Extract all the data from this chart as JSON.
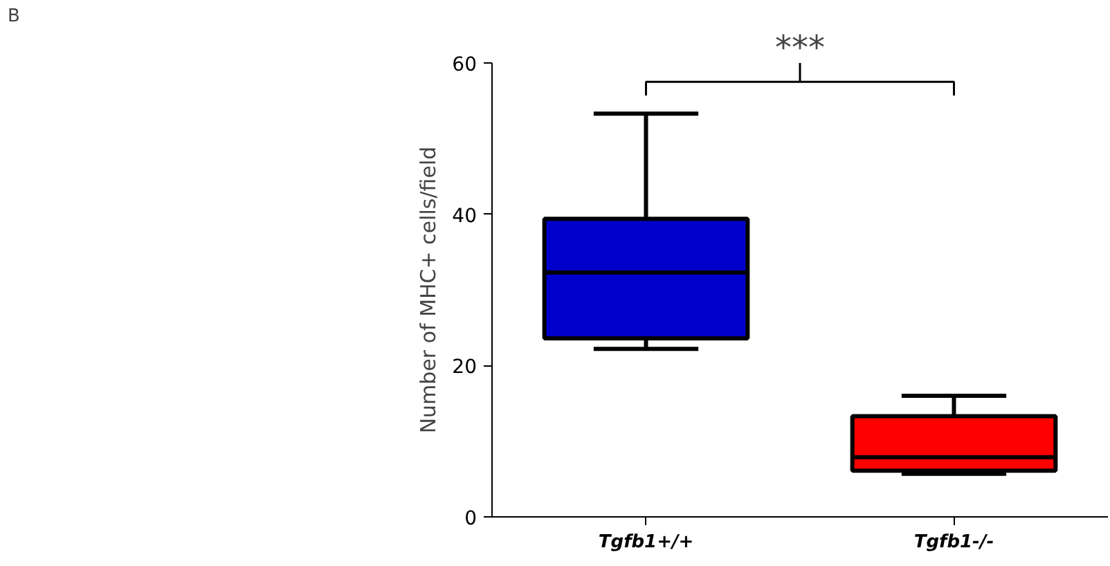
{
  "chart_data": {
    "type": "box",
    "ylabel": "Number of MHC+ cells/field",
    "categories": [
      "Tgfb1+/+",
      "Tgfb1-/-"
    ],
    "colors": [
      "#0000cc",
      "#ff0000"
    ],
    "boxes": [
      {
        "low": 22.2,
        "q1": 23.6,
        "median": 32.3,
        "q3": 39.4,
        "high": 53.3
      },
      {
        "low": 5.7,
        "q1": 6.1,
        "median": 7.9,
        "q3": 13.3,
        "high": 16.0
      }
    ],
    "ylim": [
      0,
      60
    ],
    "yticks": [
      0,
      20,
      40,
      60
    ],
    "grid": false,
    "annotations": [
      "B",
      "***"
    ]
  }
}
